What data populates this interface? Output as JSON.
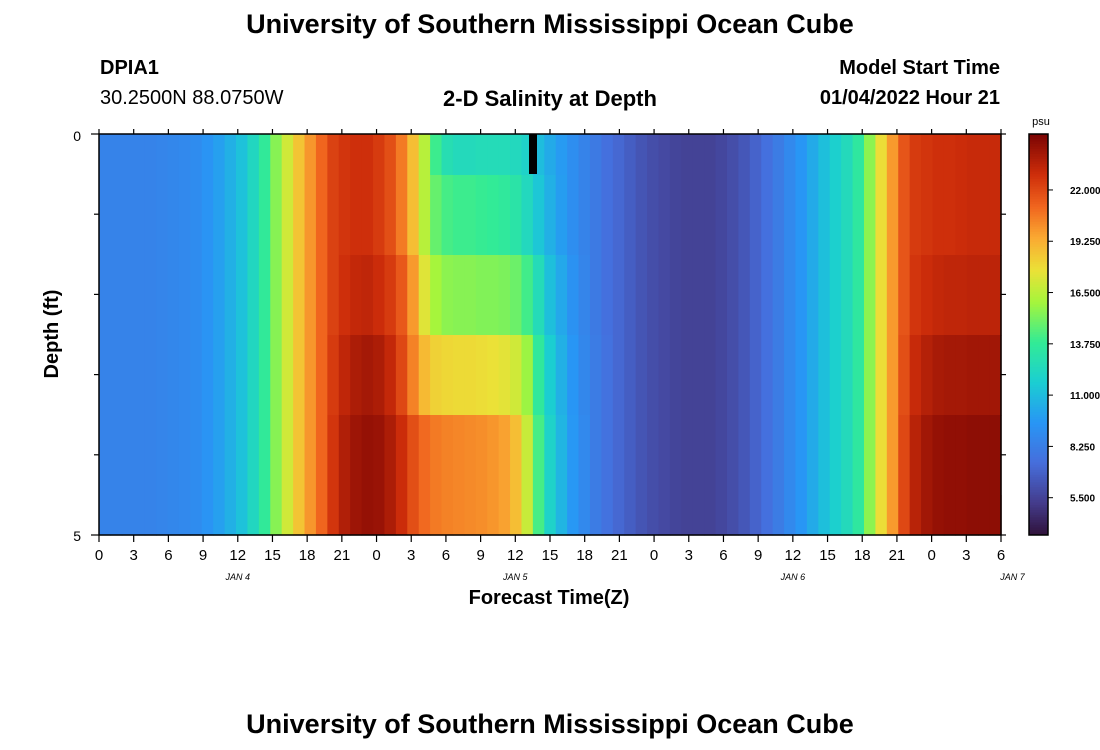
{
  "page": {
    "title": "University of Southern Mississippi Ocean Cube",
    "footer_title": "University of Southern Mississippi Ocean Cube",
    "station_id": "DPIA1",
    "station_coords": "30.2500N  88.0750W",
    "plot_title": "2-D Salinity at Depth",
    "model_start_label": "Model Start Time",
    "model_start_value": "01/04/2022 Hour 21"
  },
  "chart_data": {
    "type": "heatmap",
    "title": "2-D Salinity at Depth",
    "xlabel": "Forecast Time(Z)",
    "ylabel": "Depth (ft)",
    "y_ticks": [
      "0",
      "5"
    ],
    "ylim": [
      0,
      5
    ],
    "x_tick_labels": [
      "0",
      "3",
      "6",
      "9",
      "12",
      "15",
      "18",
      "21",
      "0",
      "3",
      "6",
      "9",
      "12",
      "15",
      "18",
      "21",
      "0",
      "3",
      "6",
      "9",
      "12",
      "15",
      "18",
      "21",
      "0",
      "3",
      "6"
    ],
    "day_labels": [
      {
        "label": "JAN 4",
        "hour": 12
      },
      {
        "label": "JAN 5",
        "hour": 36
      },
      {
        "label": "JAN 6",
        "hour": 60
      },
      {
        "label": "JAN 7",
        "hour": 79
      }
    ],
    "x_hours": [
      0,
      78
    ],
    "colorbar": {
      "unit": "psu",
      "min": 3.5,
      "max": 25.0,
      "tick_labels": [
        "22.000",
        "19.250",
        "16.500",
        "13.750",
        "11.000",
        "8.250",
        "5.500"
      ],
      "tick_values": [
        22.0,
        19.25,
        16.5,
        13.75,
        11.0,
        8.25,
        5.5
      ]
    },
    "depth_rows": 5,
    "time_columns": 79,
    "salinity_grid": [
      [
        8.5,
        8.5,
        8.5,
        8.5,
        8.5,
        8.6,
        8.7,
        8.8,
        9.0,
        9.4,
        9.9,
        10.5,
        11.2,
        12.3,
        13.7,
        15.4,
        17.0,
        18.6,
        19.9,
        21.1,
        22.2,
        22.6,
        22.8,
        22.8,
        22.4,
        21.8,
        20.6,
        18.8,
        16.4,
        14.0,
        12.8,
        12.5,
        12.5,
        12.6,
        12.6,
        12.6,
        12.4,
        12.0,
        11.0,
        10.3,
        9.7,
        9.1,
        8.5,
        8.0,
        7.5,
        7.1,
        6.7,
        6.3,
        6.0,
        5.8,
        5.6,
        5.5,
        5.5,
        5.5,
        5.7,
        6.0,
        6.4,
        6.9,
        7.5,
        8.1,
        8.8,
        9.5,
        10.3,
        11.1,
        11.8,
        12.5,
        13.5,
        15.5,
        17.8,
        19.8,
        21.6,
        22.4,
        22.6,
        22.8,
        22.8,
        22.9,
        23.0,
        23.0,
        23.0
      ],
      [
        8.5,
        8.5,
        8.5,
        8.5,
        8.5,
        8.6,
        8.7,
        8.8,
        9.0,
        9.4,
        9.9,
        10.5,
        11.2,
        12.3,
        13.7,
        15.4,
        17.0,
        18.6,
        19.9,
        21.1,
        22.2,
        22.6,
        22.8,
        22.8,
        22.4,
        21.8,
        20.6,
        18.8,
        16.4,
        14.8,
        14.2,
        14.0,
        14.0,
        13.9,
        13.8,
        13.6,
        13.2,
        12.4,
        11.4,
        10.5,
        9.8,
        9.1,
        8.5,
        8.0,
        7.5,
        7.1,
        6.7,
        6.3,
        6.0,
        5.8,
        5.6,
        5.5,
        5.5,
        5.5,
        5.7,
        6.0,
        6.4,
        6.9,
        7.5,
        8.1,
        8.8,
        9.5,
        10.3,
        11.1,
        11.8,
        12.5,
        13.5,
        15.5,
        17.8,
        19.8,
        21.6,
        22.4,
        22.6,
        22.8,
        22.8,
        22.9,
        23.0,
        23.0,
        23.0
      ],
      [
        8.5,
        8.5,
        8.5,
        8.5,
        8.5,
        8.6,
        8.7,
        8.8,
        9.0,
        9.4,
        9.9,
        10.5,
        11.2,
        12.3,
        13.7,
        15.4,
        17.0,
        18.6,
        19.9,
        21.1,
        22.2,
        22.8,
        23.1,
        23.2,
        22.9,
        22.4,
        21.5,
        19.8,
        17.4,
        16.0,
        15.5,
        15.4,
        15.4,
        15.3,
        15.3,
        15.2,
        14.9,
        14.1,
        12.6,
        11.1,
        10.2,
        9.3,
        8.6,
        8.0,
        7.5,
        7.1,
        6.7,
        6.3,
        6.0,
        5.8,
        5.6,
        5.5,
        5.5,
        5.5,
        5.7,
        6.0,
        6.4,
        6.9,
        7.5,
        8.1,
        8.8,
        9.5,
        10.3,
        11.1,
        11.8,
        12.5,
        13.5,
        15.5,
        17.8,
        19.8,
        21.6,
        22.6,
        22.9,
        23.1,
        23.2,
        23.2,
        23.3,
        23.3,
        23.3
      ],
      [
        8.5,
        8.5,
        8.5,
        8.5,
        8.5,
        8.6,
        8.7,
        8.8,
        9.0,
        9.4,
        9.9,
        10.5,
        11.2,
        12.3,
        13.7,
        15.4,
        17.0,
        18.6,
        19.9,
        21.1,
        22.4,
        23.2,
        23.7,
        23.9,
        23.7,
        23.1,
        22.0,
        20.4,
        18.9,
        18.2,
        18.0,
        17.9,
        17.9,
        17.8,
        17.7,
        17.5,
        17.0,
        15.8,
        13.6,
        11.7,
        10.5,
        9.5,
        8.7,
        8.1,
        7.6,
        7.1,
        6.7,
        6.3,
        6.0,
        5.8,
        5.6,
        5.5,
        5.5,
        5.5,
        5.7,
        6.0,
        6.4,
        6.9,
        7.5,
        8.1,
        8.8,
        9.5,
        10.3,
        11.1,
        11.8,
        12.5,
        13.5,
        15.5,
        17.8,
        19.8,
        21.8,
        23.0,
        23.5,
        23.8,
        23.9,
        23.9,
        24.0,
        24.0,
        24.0
      ],
      [
        8.5,
        8.5,
        8.5,
        8.5,
        8.5,
        8.6,
        8.7,
        8.8,
        9.0,
        9.4,
        9.9,
        10.5,
        11.2,
        12.3,
        13.7,
        15.4,
        17.0,
        18.6,
        19.9,
        21.1,
        22.6,
        23.6,
        24.1,
        24.3,
        24.2,
        23.7,
        22.9,
        21.8,
        21.0,
        20.6,
        20.4,
        20.3,
        20.2,
        20.1,
        19.9,
        19.6,
        18.8,
        16.8,
        14.2,
        12.0,
        10.7,
        9.6,
        8.8,
        8.1,
        7.6,
        7.1,
        6.7,
        6.3,
        6.0,
        5.8,
        5.6,
        5.5,
        5.5,
        5.5,
        5.7,
        6.0,
        6.4,
        6.9,
        7.5,
        8.1,
        8.8,
        9.5,
        10.3,
        11.1,
        11.8,
        12.5,
        13.5,
        15.5,
        17.8,
        19.8,
        22.0,
        23.4,
        24.0,
        24.3,
        24.4,
        24.4,
        24.5,
        24.5,
        24.5
      ]
    ]
  }
}
